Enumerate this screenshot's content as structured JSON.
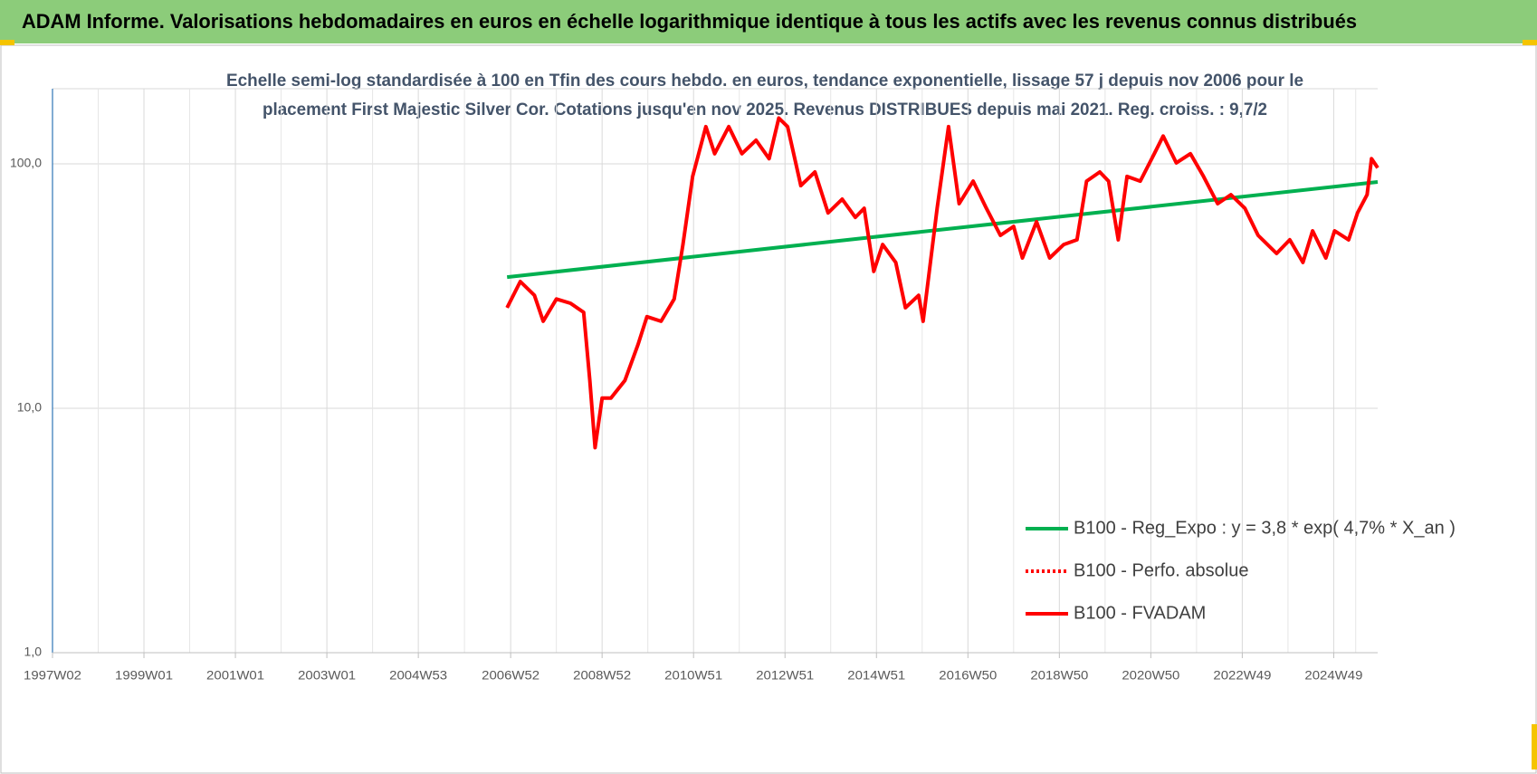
{
  "header": {
    "title": "ADAM Informe. Valorisations hebdomadaires en euros en échelle logarithmique identique à tous les actifs avec les revenus connus distribués"
  },
  "chart_data": {
    "type": "line",
    "title_lines": [
      "Echelle semi-log standardisée à 100 en Tfin des cours hebdo. en euros, tendance exponentielle, lissage 57 j depuis nov 2006 pour le",
      "placement First Majestic Silver Cor. Cotations jusqu'en nov 2025. Revenus DISTRIBUES depuis mai 2021. Reg. croiss. : 9,7/2"
    ],
    "log_scale": true,
    "grid": true,
    "legend": "bottom-right",
    "ylim": [
      1,
      203
    ],
    "yticks": [
      {
        "value": 1,
        "label": "1,0"
      },
      {
        "value": 10,
        "label": "10,0"
      },
      {
        "value": 100,
        "label": "100,0"
      }
    ],
    "xlim": [
      0,
      1507
    ],
    "xticks": [
      {
        "value": 0,
        "label": "1997W02"
      },
      {
        "value": 104,
        "label": "1999W01"
      },
      {
        "value": 208,
        "label": "2001W01"
      },
      {
        "value": 312,
        "label": "2003W01"
      },
      {
        "value": 416,
        "label": "2004W53"
      },
      {
        "value": 521,
        "label": "2006W52"
      },
      {
        "value": 625,
        "label": "2008W52"
      },
      {
        "value": 729,
        "label": "2010W51"
      },
      {
        "value": 833,
        "label": "2012W51"
      },
      {
        "value": 937,
        "label": "2014W51"
      },
      {
        "value": 1041,
        "label": "2016W50"
      },
      {
        "value": 1145,
        "label": "2018W50"
      },
      {
        "value": 1249,
        "label": "2020W50"
      },
      {
        "value": 1353,
        "label": "2022W49"
      },
      {
        "value": 1457,
        "label": "2024W49"
      }
    ],
    "series": [
      {
        "name": "B100 - Reg_Expo : y = 3,8 * exp( 4,7% *  X_an )",
        "color": "#00b050",
        "style": "solid",
        "x": [
          517,
          1507
        ],
        "values": [
          34.4,
          84.3
        ]
      },
      {
        "name": "B100 - Perfo. absolue",
        "color": "#ff0000",
        "style": "dotted",
        "x": [
          517,
          532,
          548,
          558,
          573,
          589,
          604,
          611,
          617,
          625,
          635,
          651,
          666,
          676,
          692,
          707,
          717,
          728,
          743,
          753,
          769,
          784,
          800,
          815,
          826,
          836,
          851,
          867,
          882,
          898,
          913,
          923,
          934,
          944,
          959,
          970,
          985,
          990,
          1006,
          1019,
          1031,
          1047,
          1062,
          1078,
          1093,
          1103,
          1119,
          1134,
          1150,
          1165,
          1176,
          1191,
          1201,
          1212,
          1222,
          1237,
          1253,
          1263,
          1278,
          1294,
          1309,
          1325,
          1340,
          1356,
          1371,
          1392,
          1407,
          1422,
          1433,
          1448,
          1458,
          1474,
          1484,
          1495,
          1500,
          1507
        ],
        "values": [
          25.8,
          33,
          29,
          22.7,
          28,
          26.9,
          24.7,
          13,
          6.9,
          11,
          11,
          13,
          18.3,
          23.7,
          22.7,
          28,
          46.8,
          88.8,
          142,
          110,
          142,
          110,
          125,
          105,
          154,
          142,
          81.5,
          92.6,
          63,
          71.7,
          60.4,
          65.8,
          36.3,
          46.8,
          39.5,
          25.8,
          29,
          22.7,
          65.8,
          142,
          68.7,
          85,
          65.8,
          51,
          55.5,
          41.2,
          58,
          41.2,
          46.8,
          48.9,
          85,
          92.6,
          85,
          48.9,
          88.8,
          85,
          110,
          130,
          101,
          110,
          88.8,
          68.7,
          74.8,
          65.8,
          51,
          43,
          48.9,
          39.5,
          53.2,
          41.2,
          53.2,
          48.9,
          63,
          74.8,
          105,
          96.3
        ]
      },
      {
        "name": "B100 - FVADAM",
        "color": "#ff0000",
        "style": "solid",
        "x": [
          517,
          532,
          548,
          558,
          573,
          589,
          604,
          611,
          617,
          625,
          635,
          651,
          666,
          676,
          692,
          707,
          717,
          728,
          743,
          753,
          769,
          784,
          800,
          815,
          826,
          836,
          851,
          867,
          882,
          898,
          913,
          923,
          934,
          944,
          959,
          970,
          985,
          990,
          1006,
          1019,
          1031,
          1047,
          1062,
          1078,
          1093,
          1103,
          1119,
          1134,
          1150,
          1165,
          1176,
          1191,
          1201,
          1212,
          1222,
          1237,
          1253,
          1263,
          1278,
          1294,
          1309,
          1325,
          1340,
          1356,
          1371,
          1392,
          1407,
          1422,
          1433,
          1448,
          1458,
          1474,
          1484,
          1495,
          1500,
          1507
        ],
        "values": [
          25.8,
          33,
          29,
          22.7,
          28,
          26.9,
          24.7,
          13,
          6.9,
          11,
          11,
          13,
          18.3,
          23.7,
          22.7,
          28,
          46.8,
          88.8,
          142,
          110,
          142,
          110,
          125,
          105,
          154,
          142,
          81.5,
          92.6,
          63,
          71.7,
          60.4,
          65.8,
          36.3,
          46.8,
          39.5,
          25.8,
          29,
          22.7,
          65.8,
          142,
          68.7,
          85,
          65.8,
          51,
          55.5,
          41.2,
          58,
          41.2,
          46.8,
          48.9,
          85,
          92.6,
          85,
          48.9,
          88.8,
          85,
          110,
          130,
          101,
          110,
          88.8,
          68.7,
          74.8,
          65.8,
          51,
          43,
          48.9,
          39.5,
          53.2,
          41.2,
          53.2,
          48.9,
          63,
          74.8,
          105,
          96.3
        ]
      }
    ]
  }
}
